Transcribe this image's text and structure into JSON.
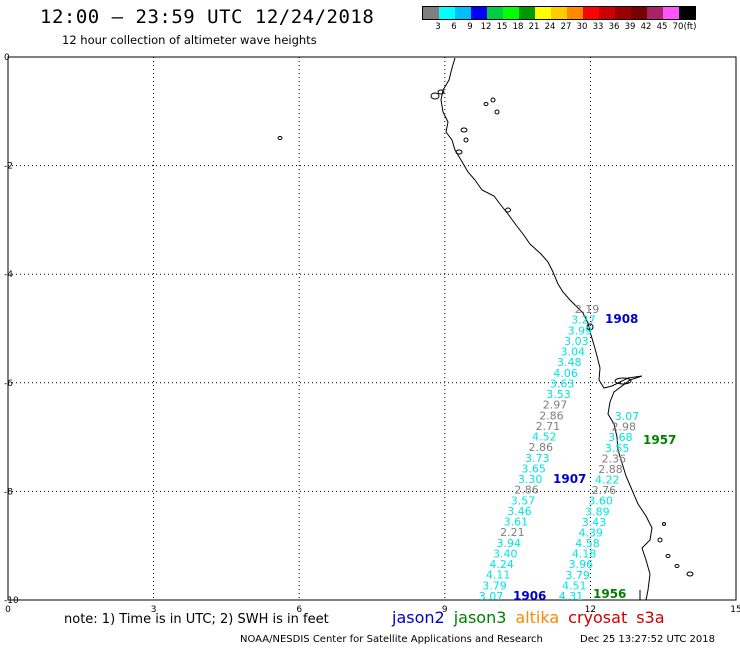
{
  "title": "12:00 – 23:59 UTC 12/24/2018",
  "subtitle": "12 hour collection of altimeter wave heights",
  "colorbar": {
    "colors": [
      "#7f7f7f",
      "#00ffff",
      "#00bfff",
      "#0000ff",
      "#00cc44",
      "#00ff00",
      "#009900",
      "#ffff00",
      "#ffcc00",
      "#ff8800",
      "#ff0000",
      "#cc0000",
      "#990000",
      "#770000",
      "#aa2266",
      "#ff55ff",
      "#000000"
    ],
    "labels": [
      "3",
      "6",
      "9",
      "12",
      "15",
      "18",
      "21",
      "24",
      "27",
      "30",
      "33",
      "36",
      "39",
      "42",
      "45",
      "70",
      "(ft)"
    ]
  },
  "map": {
    "x_ticks": [
      "0",
      "3",
      "6",
      "9",
      "12",
      "15"
    ],
    "y_ticks": [
      "0",
      "-2",
      "-4",
      "-6",
      "-8",
      "-10"
    ],
    "x_range": [
      0,
      15
    ],
    "y_range": [
      -10,
      0
    ],
    "grid": true,
    "colors": {
      "jason2": "#0000cc",
      "jason3": "#008000",
      "altika": "#ff8800",
      "cryosat": "#cc0000",
      "s3a": "#cc0000",
      "swh_low": "#7f7f7f",
      "swh_cyan": "#00e5e5"
    },
    "track_a": [
      {
        "swh": "2.19",
        "color": "#7f7f7f"
      },
      {
        "swh": "3.27",
        "color": "#00e5e5"
      },
      {
        "swh": "3.99",
        "color": "#00e5e5"
      },
      {
        "swh": "3.03",
        "color": "#00e5e5"
      },
      {
        "swh": "3.04",
        "color": "#00e5e5"
      },
      {
        "swh": "3.48",
        "color": "#00e5e5"
      },
      {
        "swh": "4.06",
        "color": "#00e5e5"
      },
      {
        "swh": "3.63",
        "color": "#00e5e5"
      },
      {
        "swh": "3.53",
        "color": "#00e5e5"
      },
      {
        "swh": "2.97",
        "color": "#7f7f7f"
      },
      {
        "swh": "2.86",
        "color": "#7f7f7f"
      },
      {
        "swh": "2.71",
        "color": "#7f7f7f"
      },
      {
        "swh": "4.52",
        "color": "#00e5e5"
      },
      {
        "swh": "2.86",
        "color": "#7f7f7f"
      },
      {
        "swh": "3.73",
        "color": "#00e5e5"
      },
      {
        "swh": "3.65",
        "color": "#00e5e5"
      },
      {
        "swh": "3.30",
        "color": "#00e5e5"
      },
      {
        "swh": "2.86",
        "color": "#7f7f7f"
      },
      {
        "swh": "3.57",
        "color": "#00e5e5"
      },
      {
        "swh": "3.46",
        "color": "#00e5e5"
      },
      {
        "swh": "3.61",
        "color": "#00e5e5"
      },
      {
        "swh": "2.21",
        "color": "#7f7f7f"
      },
      {
        "swh": "3.94",
        "color": "#00e5e5"
      },
      {
        "swh": "3.40",
        "color": "#00e5e5"
      },
      {
        "swh": "4.24",
        "color": "#00e5e5"
      },
      {
        "swh": "4.11",
        "color": "#00e5e5"
      },
      {
        "swh": "3.79",
        "color": "#00e5e5"
      },
      {
        "swh": "3.07",
        "color": "#00e5e5"
      }
    ],
    "track_b": [
      {
        "swh": "3.07",
        "color": "#00e5e5"
      },
      {
        "swh": "2.98",
        "color": "#7f7f7f"
      },
      {
        "swh": "3.68",
        "color": "#00e5e5"
      },
      {
        "swh": "3.55",
        "color": "#00e5e5"
      },
      {
        "swh": "2.36",
        "color": "#7f7f7f"
      },
      {
        "swh": "2.88",
        "color": "#7f7f7f"
      },
      {
        "swh": "4.22",
        "color": "#00e5e5"
      },
      {
        "swh": "2.76",
        "color": "#7f7f7f"
      },
      {
        "swh": "3.60",
        "color": "#00e5e5"
      },
      {
        "swh": "3.89",
        "color": "#00e5e5"
      },
      {
        "swh": "3.43",
        "color": "#00e5e5"
      },
      {
        "swh": "4.39",
        "color": "#00e5e5"
      },
      {
        "swh": "4.58",
        "color": "#00e5e5"
      },
      {
        "swh": "4.18",
        "color": "#00e5e5"
      },
      {
        "swh": "3.96",
        "color": "#00e5e5"
      },
      {
        "swh": "3.79",
        "color": "#00e5e5"
      },
      {
        "swh": "4.51",
        "color": "#00e5e5"
      },
      {
        "swh": "4.31",
        "color": "#00e5e5"
      }
    ],
    "time_labels": [
      {
        "text": "1908",
        "color": "#0000cc"
      },
      {
        "text": "1907",
        "color": "#0000cc"
      },
      {
        "text": "1906",
        "color": "#0000cc"
      },
      {
        "text": "1957",
        "color": "#008000"
      },
      {
        "text": "1956",
        "color": "#008000"
      }
    ]
  },
  "note": "note:  1) Time is in UTC;  2) SWH is in feet",
  "legend": [
    {
      "name": "jason2",
      "color": "#0000cc"
    },
    {
      "name": "jason3",
      "color": "#008000"
    },
    {
      "name": "altika",
      "color": "#ff8800"
    },
    {
      "name": "cryosat",
      "color": "#cc0000"
    },
    {
      "name": "s3a",
      "color": "#cc0000"
    }
  ],
  "credit": "NOAA/NESDIS Center for Satellite Applications and Research",
  "timestamp": "Dec 25 13:27:52 UTC 2018"
}
